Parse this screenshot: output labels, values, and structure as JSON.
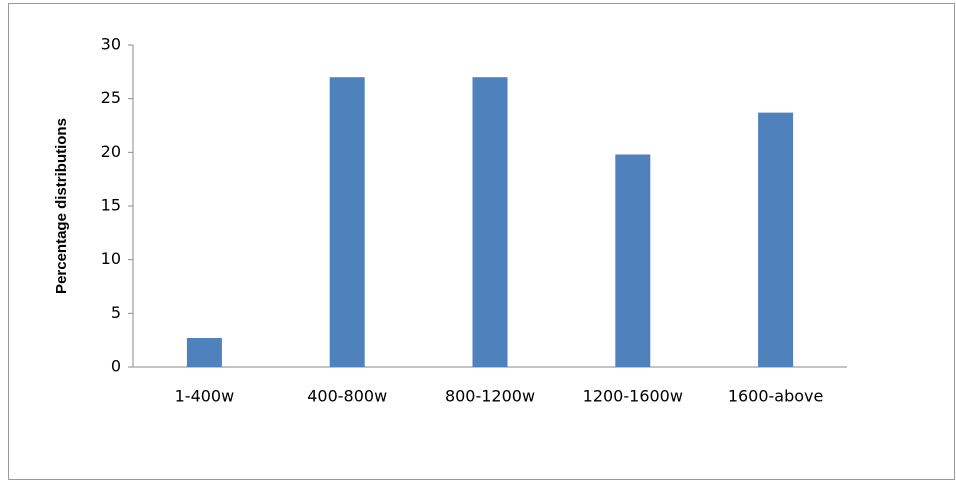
{
  "chart_data": {
    "type": "bar",
    "y_label": "Percentage distributions",
    "categories": [
      "1-400w",
      "400-800w",
      "800-1200w",
      "1200-1600w",
      "1600-above"
    ],
    "values": [
      2.7,
      27,
      27,
      19.8,
      23.7
    ],
    "color": "#4f81bd",
    "ylim": [
      0,
      30
    ],
    "yticks": [
      0,
      5,
      10,
      15,
      20,
      25,
      30
    ],
    "grid": false
  }
}
